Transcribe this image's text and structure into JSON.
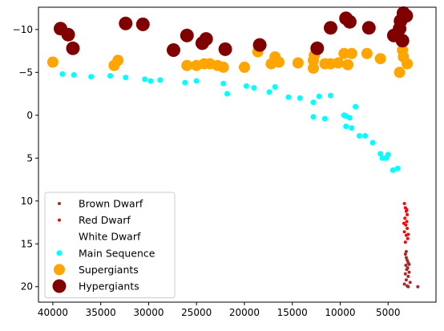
{
  "chart_data": {
    "type": "scatter",
    "title": "",
    "xlabel": "",
    "ylabel": "",
    "xlim": [
      41500,
      0
    ],
    "ylim": [
      21.8,
      -12.6
    ],
    "x_inverted": true,
    "y_inverted": true,
    "grid": false,
    "legend_position": "lower-left",
    "x_ticks": [
      40000,
      35000,
      30000,
      25000,
      20000,
      15000,
      10000,
      5000
    ],
    "y_ticks": [
      -10,
      -5,
      0,
      5,
      10,
      15,
      20
    ],
    "series": [
      {
        "name": "Brown Dwarf",
        "color": "#a52a2a",
        "marker_size": "small",
        "points": [
          [
            3200,
            16.2
          ],
          [
            3100,
            16.6
          ],
          [
            3000,
            16.9
          ],
          [
            2900,
            17.2
          ],
          [
            3150,
            17.5
          ],
          [
            2950,
            17.8
          ],
          [
            3050,
            18.0
          ],
          [
            2800,
            18.3
          ],
          [
            3200,
            18.5
          ],
          [
            2900,
            18.8
          ],
          [
            3100,
            19.2
          ],
          [
            2700,
            19.5
          ],
          [
            3300,
            19.7
          ],
          [
            3000,
            19.9
          ],
          [
            2900,
            20.0
          ],
          [
            1900,
            20.0
          ],
          [
            2800,
            17.4
          ],
          [
            3100,
            15.9
          ]
        ]
      },
      {
        "name": "Red Dwarf",
        "color": "#ff0000",
        "marker_size": "small",
        "points": [
          [
            3300,
            10.3
          ],
          [
            3200,
            10.8
          ],
          [
            3100,
            11.2
          ],
          [
            3000,
            11.6
          ],
          [
            3250,
            12.0
          ],
          [
            3050,
            12.4
          ],
          [
            3150,
            12.8
          ],
          [
            3000,
            13.2
          ],
          [
            3300,
            13.6
          ],
          [
            3100,
            14.0
          ],
          [
            2950,
            14.4
          ],
          [
            3200,
            14.8
          ],
          [
            3050,
            11.0
          ],
          [
            3350,
            12.6
          ],
          [
            2900,
            13.9
          ]
        ]
      },
      {
        "name": "White Dwarf",
        "color": "#ffffff",
        "marker_size": "small",
        "points": []
      },
      {
        "name": "Main Sequence",
        "color": "#00ffff",
        "marker_size": "medium",
        "points": [
          [
            39000,
            -4.8
          ],
          [
            37800,
            -4.7
          ],
          [
            36000,
            -4.5
          ],
          [
            34000,
            -4.6
          ],
          [
            32400,
            -4.4
          ],
          [
            30400,
            -4.2
          ],
          [
            29800,
            -4.0
          ],
          [
            28800,
            -4.1
          ],
          [
            26200,
            -3.8
          ],
          [
            25000,
            -4.0
          ],
          [
            22200,
            -3.7
          ],
          [
            21800,
            -2.5
          ],
          [
            19800,
            -3.4
          ],
          [
            19000,
            -3.2
          ],
          [
            17400,
            -2.7
          ],
          [
            16800,
            -3.3
          ],
          [
            15400,
            -2.1
          ],
          [
            14200,
            -2.0
          ],
          [
            12800,
            -1.5
          ],
          [
            12800,
            0.2
          ],
          [
            12200,
            -2.2
          ],
          [
            11600,
            0.4
          ],
          [
            11000,
            -2.3
          ],
          [
            9600,
            0.0
          ],
          [
            9400,
            0.1
          ],
          [
            9000,
            0.3
          ],
          [
            9400,
            1.3
          ],
          [
            8800,
            1.5
          ],
          [
            8400,
            -1.0
          ],
          [
            8000,
            2.4
          ],
          [
            7400,
            2.4
          ],
          [
            6600,
            3.2
          ],
          [
            5800,
            4.5
          ],
          [
            5600,
            5.0
          ],
          [
            5200,
            5.0
          ],
          [
            5000,
            4.6
          ],
          [
            4500,
            6.4
          ],
          [
            4000,
            6.2
          ]
        ]
      },
      {
        "name": "Supergiants",
        "color": "#ffa500",
        "marker_size": "large",
        "points": [
          [
            40000,
            -6.2
          ],
          [
            33600,
            -5.8
          ],
          [
            33200,
            -6.4
          ],
          [
            26000,
            -5.8
          ],
          [
            25000,
            -5.8
          ],
          [
            24200,
            -6.0
          ],
          [
            23600,
            -6.0
          ],
          [
            22800,
            -5.8
          ],
          [
            22200,
            -5.6
          ],
          [
            20000,
            -5.6
          ],
          [
            18600,
            -7.4
          ],
          [
            17200,
            -6.0
          ],
          [
            16800,
            -6.8
          ],
          [
            16400,
            -6.2
          ],
          [
            14400,
            -6.1
          ],
          [
            12800,
            -5.5
          ],
          [
            12800,
            -6.4
          ],
          [
            12700,
            -7.0
          ],
          [
            11600,
            -6.0
          ],
          [
            11000,
            -6.0
          ],
          [
            10200,
            -6.1
          ],
          [
            9600,
            -7.2
          ],
          [
            9200,
            -5.9
          ],
          [
            8800,
            -7.2
          ],
          [
            7200,
            -7.2
          ],
          [
            5800,
            -6.6
          ],
          [
            3800,
            -5.0
          ],
          [
            3400,
            -6.8
          ],
          [
            3000,
            -6.0
          ],
          [
            3500,
            -7.6
          ]
        ]
      },
      {
        "name": "Hypergiants",
        "color": "#800000",
        "marker_size": "xlarge",
        "points": [
          [
            39200,
            -10.1
          ],
          [
            38400,
            -9.4
          ],
          [
            37900,
            -7.8
          ],
          [
            32400,
            -10.7
          ],
          [
            30600,
            -10.6
          ],
          [
            27400,
            -7.6
          ],
          [
            26000,
            -9.3
          ],
          [
            24400,
            -8.4
          ],
          [
            24000,
            -8.9
          ],
          [
            22000,
            -7.7
          ],
          [
            18400,
            -8.2
          ],
          [
            12400,
            -7.8
          ],
          [
            11000,
            -10.2
          ],
          [
            9400,
            -11.3
          ],
          [
            9000,
            -10.9
          ],
          [
            7000,
            -10.2
          ],
          [
            4400,
            -9.3
          ],
          [
            3800,
            -10.1
          ],
          [
            3700,
            -11.0
          ],
          [
            3400,
            -11.9
          ],
          [
            3500,
            -8.7
          ],
          [
            3100,
            -11.6
          ]
        ]
      }
    ]
  }
}
